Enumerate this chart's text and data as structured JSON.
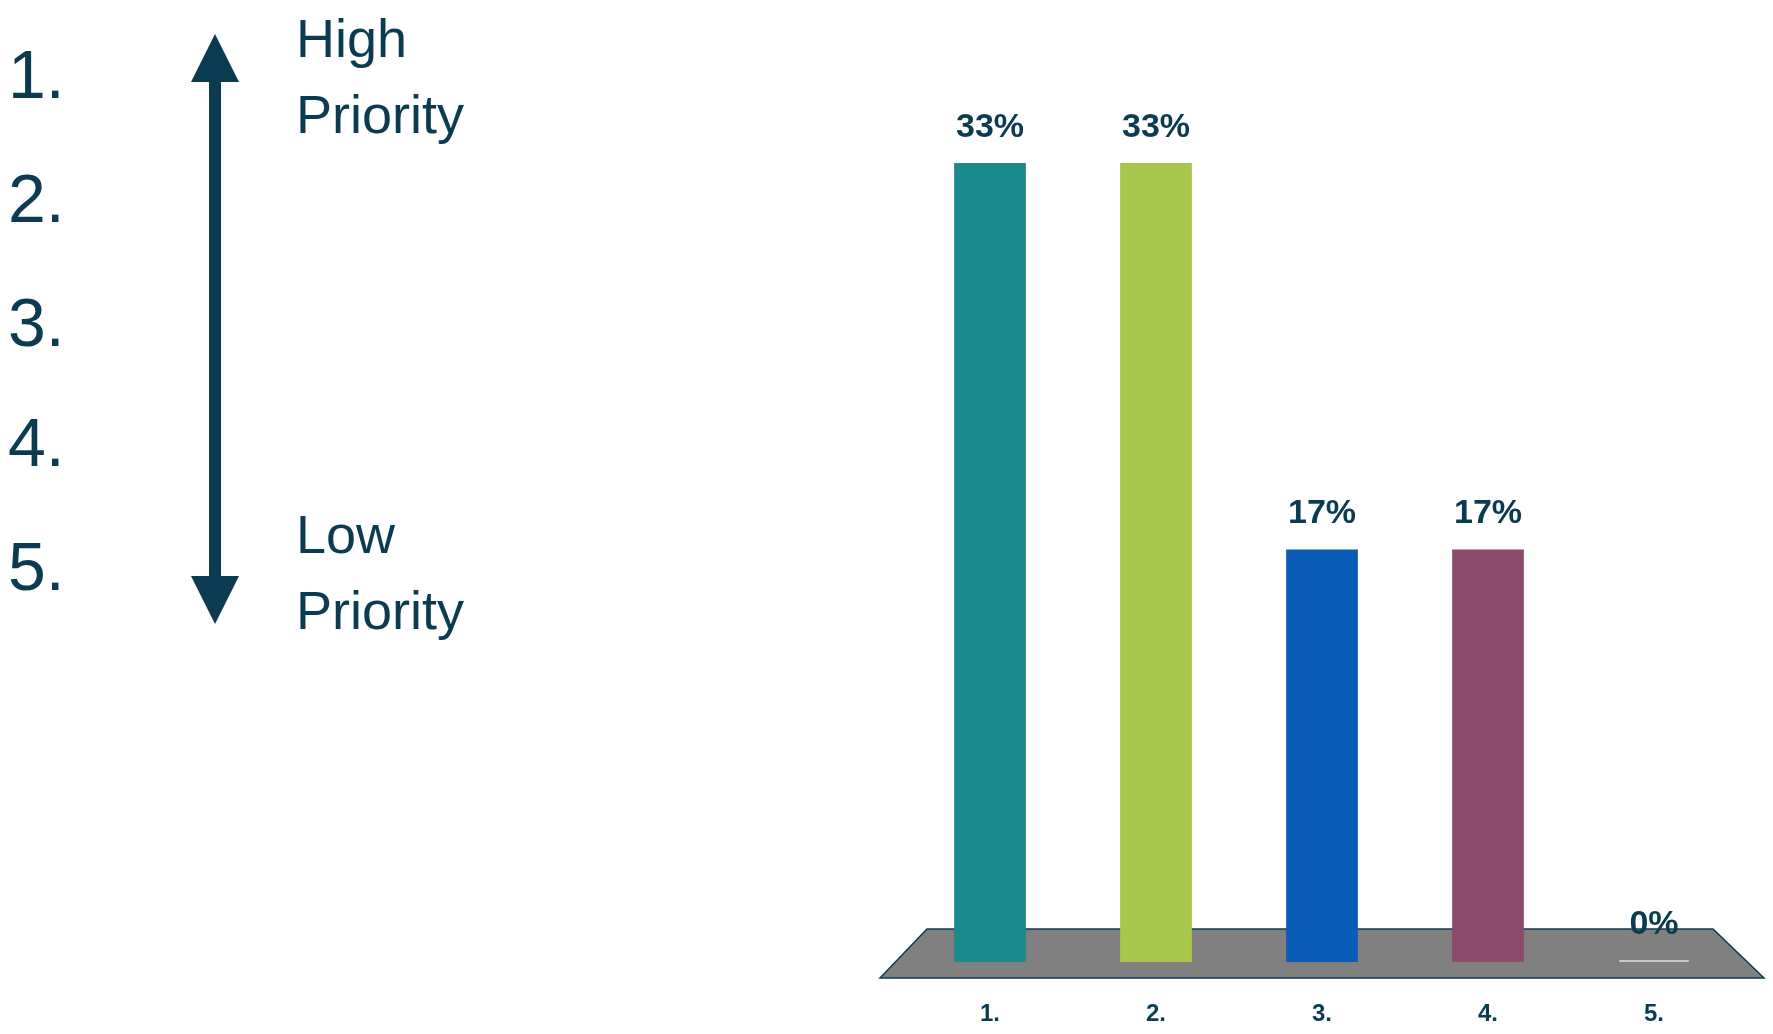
{
  "chart_data": {
    "type": "bar",
    "categories": [
      "1.",
      "2.",
      "3.",
      "4.",
      "5."
    ],
    "values": [
      33,
      33,
      17,
      17,
      0
    ],
    "colors": [
      "#1b8a8a",
      "#a9c64c",
      "#0a5cb6",
      "#8a4b6c",
      "#c4cacc"
    ],
    "value_labels": [
      "33%",
      "33%",
      "17%",
      "17%",
      "0%"
    ],
    "annotations": [
      "1.",
      "2.",
      "3.",
      "4.",
      "5.",
      "High Priority",
      "Low Priority"
    ]
  }
}
